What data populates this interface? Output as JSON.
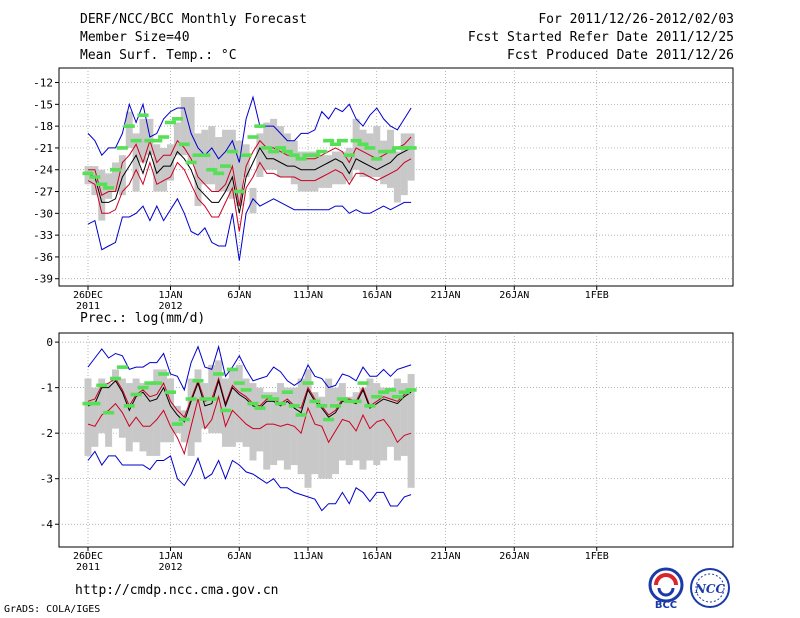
{
  "header": {
    "title": "DERF/NCC/BCC Monthly Forecast",
    "member_size": "Member Size=40",
    "variable": "Mean Surf. Temp.: °C",
    "period": "For 2011/12/26-2012/02/03",
    "refer_date": "Fcst Started Refer Date 2011/12/25",
    "produced_date": "Fcst Produced Date 2011/12/26"
  },
  "footer": {
    "url": "http://cmdp.ncc.cma.gov.cn",
    "grads": "GrADS: COLA/IGES",
    "logo_bcc": "BCC",
    "logo_ncc": "NCC"
  },
  "colors": {
    "envelope": "#0000cc",
    "spread": "#cc0022",
    "mean": "#000000",
    "box": "#c8c8c8",
    "median": "#55e055"
  },
  "chart_data": [
    {
      "type": "box",
      "title": "Mean Surf. Temp.: °C",
      "ylim": [
        -40,
        -10
      ],
      "yticks": [
        -12,
        -15,
        -18,
        -21,
        -24,
        -27,
        -30,
        -33,
        -36,
        -39
      ],
      "x_tick_labels": [
        {
          "day": 0,
          "label": "26DEC",
          "sub": "2011"
        },
        {
          "day": 6,
          "label": "1JAN",
          "sub": "2012"
        },
        {
          "day": 11,
          "label": "6JAN",
          "sub": ""
        },
        {
          "day": 16,
          "label": "11JAN",
          "sub": ""
        },
        {
          "day": 21,
          "label": "16JAN",
          "sub": ""
        },
        {
          "day": 26,
          "label": "21JAN",
          "sub": ""
        },
        {
          "day": 31,
          "label": "26JAN",
          "sub": ""
        },
        {
          "day": 37,
          "label": "1FEB",
          "sub": ""
        }
      ],
      "box_high": [
        -23.5,
        -23.5,
        -24,
        -24.5,
        -23,
        -22,
        -16,
        -19,
        -17,
        -17,
        -20.5,
        -21,
        -20.5,
        -17.5,
        -14,
        -14,
        -19,
        -18.5,
        -18,
        -19.5,
        -18.5,
        -18.5,
        -20,
        -20.5,
        -26.5,
        -19,
        -17.5,
        -17,
        -18,
        -19,
        -20,
        -21.5,
        -21.5,
        -21.5,
        -22,
        -22,
        -21.5,
        -21.5,
        -21,
        -17,
        -18.5,
        -19,
        -18,
        -20,
        -18.5,
        -21.5,
        -19,
        -19
      ],
      "box_low": [
        -26,
        -27.5,
        -31,
        -28,
        -27,
        -27.5,
        -21,
        -27,
        -23,
        -22,
        -27,
        -27,
        -25.5,
        -22,
        -22,
        -23,
        -29,
        -26,
        -26,
        -27,
        -27,
        -28,
        -29,
        -25,
        -30,
        -25,
        -24,
        -24,
        -25,
        -25,
        -26,
        -27,
        -27,
        -27,
        -26.5,
        -26.5,
        -26,
        -26,
        -25.5,
        -24,
        -25,
        -25,
        -25,
        -26,
        -26.5,
        -28.5,
        -27.5,
        -25.5
      ],
      "median": [
        -24.5,
        -25,
        -26,
        -26.5,
        -24,
        -21,
        -18,
        -20,
        -16.5,
        -20,
        -20,
        -19.5,
        -17.5,
        -17,
        -20.5,
        -23,
        -22,
        -22,
        -24,
        -24.5,
        -23.5,
        -21.5,
        -27,
        -22,
        -19.5,
        -18,
        -21,
        -21.5,
        -21,
        -21.5,
        -22,
        -22.5,
        -22,
        -22,
        -21.5,
        -20,
        -20.5,
        -20,
        -22,
        -20,
        -20.5,
        -21,
        -22.5,
        -21.5,
        -21.5,
        -21,
        -21,
        -21
      ],
      "mean": [
        -24.5,
        -25,
        -28.5,
        -28.5,
        -28,
        -25,
        -23.5,
        -22,
        -24.5,
        -21.5,
        -24.5,
        -23.5,
        -23.5,
        -21.5,
        -22.5,
        -24,
        -26.5,
        -27.5,
        -28.5,
        -28.5,
        -27,
        -25,
        -30,
        -25,
        -23,
        -21,
        -22.5,
        -22.5,
        -23,
        -23.5,
        -23.5,
        -24,
        -24,
        -24,
        -23.5,
        -23,
        -22.5,
        -23,
        -24.5,
        -22.5,
        -23,
        -23.5,
        -24,
        -23.5,
        -23,
        -22,
        -21.5,
        -21
      ],
      "upper": [
        -24,
        -24,
        -27.5,
        -27,
        -27,
        -23,
        -22,
        -20.5,
        -23,
        -20,
        -23,
        -22,
        -22,
        -20,
        -21,
        -22.5,
        -25,
        -26,
        -27,
        -27,
        -26,
        -23.5,
        -29,
        -23.5,
        -21.5,
        -20,
        -21,
        -21,
        -21.5,
        -22,
        -22,
        -22.5,
        -22.5,
        -22.5,
        -22,
        -21.5,
        -21,
        -21.5,
        -23,
        -21,
        -21.5,
        -22,
        -22.5,
        -22,
        -21.5,
        -21,
        -20.5,
        -19.5
      ],
      "lower": [
        -25.5,
        -26,
        -30,
        -30,
        -29.5,
        -27,
        -26,
        -24,
        -26,
        -23,
        -26,
        -25.5,
        -25,
        -23,
        -24,
        -26,
        -28,
        -29,
        -30.5,
        -30.5,
        -28.5,
        -26.5,
        -32.5,
        -26.5,
        -25,
        -23,
        -24.5,
        -24.5,
        -25,
        -25,
        -25,
        -25.5,
        -25.5,
        -25.5,
        -25,
        -24.5,
        -24,
        -24.5,
        -26,
        -24.5,
        -24.5,
        -25,
        -25.5,
        -25,
        -24.5,
        -24,
        -23,
        -22.5
      ],
      "max": [
        -19,
        -20,
        -22,
        -21,
        -21,
        -19,
        -15,
        -17.5,
        -15,
        -19.5,
        -19,
        -17,
        -16,
        -15.5,
        -15.5,
        -19,
        -21,
        -22,
        -21,
        -22.5,
        -21.5,
        -20,
        -23,
        -17,
        -14,
        -18,
        -18,
        -18,
        -19,
        -20,
        -20,
        -19,
        -19,
        -18.5,
        -16,
        -17,
        -15.5,
        -16,
        -15,
        -17,
        -18,
        -16.5,
        -15.5,
        -17,
        -18,
        -18.5,
        -17,
        -15.5
      ],
      "min": [
        -31.5,
        -31,
        -35,
        -34.5,
        -34,
        -30.5,
        -30.5,
        -30,
        -29,
        -31,
        -29,
        -31,
        -29.5,
        -28,
        -30,
        -32.5,
        -33,
        -32,
        -34,
        -34.5,
        -34.5,
        -30,
        -36.5,
        -30,
        -28,
        -29,
        -28.5,
        -28,
        -28.5,
        -29,
        -29.5,
        -29.5,
        -29.5,
        -29.5,
        -29.5,
        -29.5,
        -29,
        -29,
        -30,
        -29.5,
        -30,
        -30,
        -29.5,
        -29,
        -29.5,
        -29,
        -28.5,
        -28.5
      ]
    },
    {
      "type": "box",
      "title": "Prec.: log(mm/d)",
      "ylim": [
        -4.5,
        0.2
      ],
      "yticks": [
        0,
        -1,
        -2,
        -3,
        -4
      ],
      "x_tick_labels": [
        {
          "day": 0,
          "label": "26DEC",
          "sub": "2011"
        },
        {
          "day": 6,
          "label": "1JAN",
          "sub": "2012"
        },
        {
          "day": 11,
          "label": "6JAN",
          "sub": ""
        },
        {
          "day": 16,
          "label": "11JAN",
          "sub": ""
        },
        {
          "day": 21,
          "label": "16JAN",
          "sub": ""
        },
        {
          "day": 26,
          "label": "21JAN",
          "sub": ""
        },
        {
          "day": 31,
          "label": "26JAN",
          "sub": ""
        },
        {
          "day": 37,
          "label": "1FEB",
          "sub": ""
        }
      ],
      "box_high": [
        -0.8,
        -1.0,
        -0.8,
        -0.9,
        -0.6,
        -0.8,
        -0.9,
        -0.8,
        -0.9,
        -0.9,
        -0.6,
        -0.6,
        -0.8,
        -1.4,
        -1.5,
        -0.8,
        -0.6,
        -0.9,
        -0.5,
        -0.4,
        -0.8,
        -0.6,
        -0.5,
        -0.8,
        -0.9,
        -1.0,
        -1.1,
        -1.1,
        -0.9,
        -1.0,
        -1.0,
        -0.8,
        -0.6,
        -1.1,
        -1.2,
        -0.8,
        -1.0,
        -0.9,
        -1.2,
        -1.1,
        -1.0,
        -0.8,
        -0.9,
        -1.0,
        -1.0,
        -0.8,
        -0.9,
        -0.7
      ],
      "box_low": [
        -2.5,
        -2.3,
        -2.0,
        -2.3,
        -1.9,
        -2.1,
        -2.4,
        -2.2,
        -2.4,
        -2.5,
        -2.5,
        -2.2,
        -2.2,
        -2.0,
        -2.2,
        -2.5,
        -2.2,
        -1.9,
        -2.0,
        -2.0,
        -2.3,
        -2.3,
        -2.2,
        -2.3,
        -2.6,
        -2.4,
        -2.8,
        -2.7,
        -2.6,
        -2.8,
        -2.7,
        -2.9,
        -3.2,
        -2.9,
        -3.0,
        -3.0,
        -2.9,
        -2.6,
        -2.7,
        -2.6,
        -2.8,
        -2.6,
        -2.7,
        -2.6,
        -2.3,
        -2.6,
        -2.5,
        -3.2
      ],
      "median": [
        -1.35,
        -1.35,
        -0.95,
        -1.55,
        -0.8,
        -0.55,
        -1.4,
        -1.15,
        -1.0,
        -0.9,
        -0.9,
        -0.7,
        -1.1,
        -1.8,
        -1.7,
        -1.25,
        -0.85,
        -1.25,
        -1.25,
        -0.7,
        -1.5,
        -0.6,
        -0.9,
        -1.05,
        -1.35,
        -1.45,
        -1.2,
        -1.25,
        -1.35,
        -1.1,
        -1.4,
        -1.6,
        -0.9,
        -1.3,
        -1.4,
        -1.7,
        -1.4,
        -1.25,
        -1.3,
        -1.3,
        -0.9,
        -1.4,
        -1.2,
        -1.1,
        -1.05,
        -1.2,
        -1.1,
        -1.05
      ],
      "mean": [
        -1.4,
        -1.35,
        -1.0,
        -1.0,
        -0.85,
        -1.1,
        -1.5,
        -1.2,
        -1.1,
        -1.3,
        -1.25,
        -1.0,
        -1.4,
        -1.6,
        -1.75,
        -1.3,
        -0.9,
        -1.4,
        -1.35,
        -0.85,
        -1.4,
        -1.0,
        -1.15,
        -1.25,
        -1.4,
        -1.45,
        -1.3,
        -1.3,
        -1.4,
        -1.3,
        -1.45,
        -1.55,
        -1.05,
        -1.3,
        -1.45,
        -1.65,
        -1.55,
        -1.3,
        -1.3,
        -1.35,
        -1.05,
        -1.45,
        -1.35,
        -1.25,
        -1.3,
        -1.35,
        -1.2,
        -1.1
      ],
      "upper": [
        -1.3,
        -1.25,
        -0.95,
        -0.9,
        -0.8,
        -1.05,
        -1.4,
        -1.15,
        -1.05,
        -1.2,
        -1.15,
        -0.9,
        -1.3,
        -1.5,
        -1.65,
        -1.25,
        -0.85,
        -1.3,
        -1.25,
        -0.8,
        -1.35,
        -0.95,
        -1.1,
        -1.2,
        -1.35,
        -1.4,
        -1.25,
        -1.25,
        -1.35,
        -1.25,
        -1.4,
        -1.45,
        -1.0,
        -1.25,
        -1.4,
        -1.6,
        -1.5,
        -1.25,
        -1.25,
        -1.3,
        -1.0,
        -1.4,
        -1.3,
        -1.2,
        -1.25,
        -1.3,
        -1.15,
        -1.05
      ],
      "lower": [
        -1.8,
        -1.85,
        -1.6,
        -1.5,
        -1.35,
        -1.55,
        -1.85,
        -1.65,
        -1.85,
        -1.85,
        -1.7,
        -1.5,
        -1.85,
        -2.1,
        -2.45,
        -1.85,
        -1.25,
        -1.9,
        -1.7,
        -1.2,
        -1.85,
        -1.5,
        -1.65,
        -1.8,
        -1.9,
        -1.9,
        -1.8,
        -1.8,
        -1.85,
        -1.8,
        -1.85,
        -2.0,
        -1.45,
        -1.8,
        -1.85,
        -2.2,
        -1.95,
        -1.7,
        -1.75,
        -1.95,
        -1.6,
        -1.9,
        -1.75,
        -1.7,
        -1.9,
        -2.2,
        -2.05,
        -2.0
      ],
      "max": [
        -0.55,
        -0.35,
        -0.15,
        -0.35,
        -0.25,
        -0.3,
        -0.6,
        -0.55,
        -0.55,
        -0.45,
        -0.45,
        -0.25,
        -0.7,
        -0.75,
        -1.05,
        -0.45,
        -0.1,
        -0.55,
        -0.6,
        -0.1,
        -0.75,
        -0.55,
        -0.3,
        -0.6,
        -0.85,
        -0.8,
        -0.75,
        -0.55,
        -0.65,
        -0.85,
        -0.95,
        -0.85,
        -0.5,
        -0.75,
        -0.8,
        -1.0,
        -0.95,
        -0.7,
        -0.75,
        -0.85,
        -0.55,
        -0.75,
        -0.75,
        -0.6,
        -0.75,
        -0.6,
        -0.55,
        -0.5
      ],
      "min": [
        -2.6,
        -2.4,
        -2.7,
        -2.5,
        -2.5,
        -2.7,
        -2.7,
        -2.7,
        -2.7,
        -2.8,
        -2.6,
        -2.6,
        -2.5,
        -3.0,
        -3.15,
        -2.9,
        -2.55,
        -3.0,
        -2.9,
        -2.6,
        -3.0,
        -2.6,
        -2.7,
        -2.85,
        -2.9,
        -3.0,
        -3.1,
        -3.0,
        -3.2,
        -3.2,
        -3.3,
        -3.35,
        -3.4,
        -3.45,
        -3.7,
        -3.55,
        -3.55,
        -3.3,
        -3.55,
        -3.2,
        -3.3,
        -3.5,
        -3.3,
        -3.3,
        -3.6,
        -3.6,
        -3.4,
        -3.35
      ]
    }
  ]
}
